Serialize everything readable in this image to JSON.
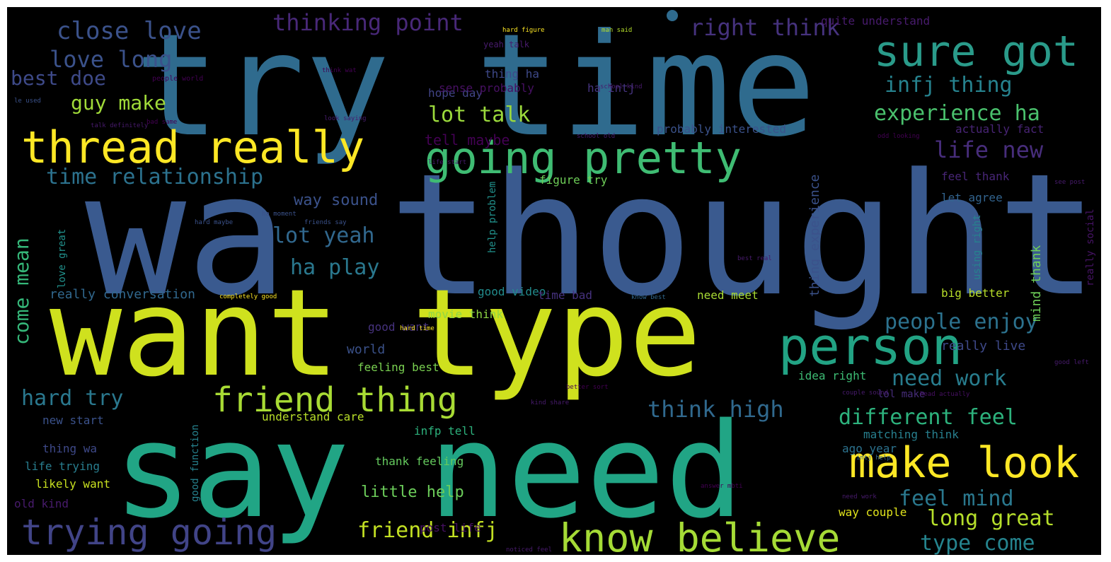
{
  "words": [
    {
      "text": "try time",
      "color": "#2f6b8e"
    },
    {
      "text": "wa thought",
      "color": "#3a5a8f"
    },
    {
      "text": "want type",
      "color": "#cfe11e"
    },
    {
      "text": "say need",
      "color": "#21a585"
    },
    {
      "text": "thread really",
      "color": "#fde725"
    },
    {
      "text": "going pretty",
      "color": "#3fbc73"
    },
    {
      "text": "sure got",
      "color": "#2a9b8a"
    },
    {
      "text": "person",
      "color": "#22a384"
    },
    {
      "text": "make look",
      "color": "#fde725"
    },
    {
      "text": "know believe",
      "color": "#a5db36"
    },
    {
      "text": "trying going",
      "color": "#414487"
    },
    {
      "text": "friend thing",
      "color": "#a8db34"
    },
    {
      "text": "close love",
      "color": "#3b528b"
    },
    {
      "text": "thinking point",
      "color": "#482878"
    },
    {
      "text": "right think",
      "color": "#46327e"
    },
    {
      "text": "love long",
      "color": "#3b528b"
    },
    {
      "text": "best doe",
      "color": "#3e4a89"
    },
    {
      "text": "guy make",
      "color": "#a0da39"
    },
    {
      "text": "lot talk",
      "color": "#9bd93c"
    },
    {
      "text": "time relationship",
      "color": "#2c728e"
    },
    {
      "text": "infj thing",
      "color": "#26828e"
    },
    {
      "text": "experience ha",
      "color": "#4ac16d"
    },
    {
      "text": "life new",
      "color": "#472d7b"
    },
    {
      "text": "tell maybe",
      "color": "#440154"
    },
    {
      "text": "way sound",
      "color": "#3b528b"
    },
    {
      "text": "lot yeah",
      "color": "#31688e"
    },
    {
      "text": "come mean",
      "color": "#35b779"
    },
    {
      "text": "ha play",
      "color": "#2a788e"
    },
    {
      "text": "people enjoy",
      "color": "#2c728e"
    },
    {
      "text": "need work",
      "color": "#287d8e"
    },
    {
      "text": "think high",
      "color": "#30698e"
    },
    {
      "text": "different feel",
      "color": "#2db27d"
    },
    {
      "text": "hard try",
      "color": "#2a788e"
    },
    {
      "text": "feel mind",
      "color": "#2a788e"
    },
    {
      "text": "long great",
      "color": "#b5de2b"
    },
    {
      "text": "type come",
      "color": "#25848e"
    },
    {
      "text": "friend infj",
      "color": "#c2df23"
    },
    {
      "text": "little help",
      "color": "#6ccd5a"
    },
    {
      "text": "really conversation",
      "color": "#31688e"
    },
    {
      "text": "really live",
      "color": "#3e4989"
    },
    {
      "text": "people world",
      "color": "#440154"
    },
    {
      "text": "hope day",
      "color": "#414487"
    },
    {
      "text": "sense probably",
      "color": "#471063"
    },
    {
      "text": "yeah talk",
      "color": "#481b6d"
    },
    {
      "text": "thing ha",
      "color": "#3e4989"
    },
    {
      "text": "ha intj",
      "color": "#463480"
    },
    {
      "text": "probably interested",
      "color": "#3b528b"
    },
    {
      "text": "actually fact",
      "color": "#482475"
    },
    {
      "text": "feel thank",
      "color": "#482677"
    },
    {
      "text": "let agree",
      "color": "#32648e"
    },
    {
      "text": "figure try",
      "color": "#6ece58"
    },
    {
      "text": "quite understand",
      "color": "#481b6d"
    },
    {
      "text": "good video",
      "color": "#228c8d"
    },
    {
      "text": "movie think",
      "color": "#8fd744"
    },
    {
      "text": "time bad",
      "color": "#46327e"
    },
    {
      "text": "need meet",
      "color": "#a8db34"
    },
    {
      "text": "big better",
      "color": "#b8de29"
    },
    {
      "text": "good want",
      "color": "#46327e"
    },
    {
      "text": "feeling best",
      "color": "#7ad151"
    },
    {
      "text": "idea right",
      "color": "#3dbc74"
    },
    {
      "text": "lol make",
      "color": "#472d7b"
    },
    {
      "text": "understand care",
      "color": "#b8de29"
    },
    {
      "text": "infp tell",
      "color": "#2db27d"
    },
    {
      "text": "new start",
      "color": "#3b528b"
    },
    {
      "text": "thing wa",
      "color": "#3e4989"
    },
    {
      "text": "life trying",
      "color": "#287d8e"
    },
    {
      "text": "likely want",
      "color": "#c8e020"
    },
    {
      "text": "old kind",
      "color": "#481b6d"
    },
    {
      "text": "thank feeling",
      "color": "#65cb5e"
    },
    {
      "text": "matching think",
      "color": "#277f8e"
    },
    {
      "text": "ago year",
      "color": "#2c728e"
    },
    {
      "text": "way couple",
      "color": "#e0e31b"
    },
    {
      "text": "post life",
      "color": "#471063"
    },
    {
      "text": "world",
      "color": "#3b528b"
    },
    {
      "text": "love great",
      "color": "#21918c"
    },
    {
      "text": "help problem",
      "color": "#21918c"
    },
    {
      "text": "thing experience",
      "color": "#3b528b"
    },
    {
      "text": "using right",
      "color": "#26828e"
    },
    {
      "text": "mind thank",
      "color": "#6ece58"
    },
    {
      "text": "really social",
      "color": "#481467"
    },
    {
      "text": "good function",
      "color": "#26828e"
    },
    {
      "text": "hard figure",
      "color": "#fde725"
    },
    {
      "text": "man said",
      "color": "#b5de2b"
    },
    {
      "text": "school kind",
      "color": "#481b6d"
    },
    {
      "text": "school old",
      "color": "#481b6d"
    },
    {
      "text": "talk definitely",
      "color": "#481b6d"
    },
    {
      "text": "bad same",
      "color": "#440154"
    },
    {
      "text": "look saying",
      "color": "#481b6d"
    },
    {
      "text": "odd looking",
      "color": "#440154"
    },
    {
      "text": "life start",
      "color": "#481b6d"
    },
    {
      "text": "ha moment",
      "color": "#3b528b"
    },
    {
      "text": "friends say",
      "color": "#3b528b"
    },
    {
      "text": "hard maybe",
      "color": "#3b528b"
    },
    {
      "text": "completely good",
      "color": "#fde725"
    },
    {
      "text": "know best",
      "color": "#31688e"
    },
    {
      "text": "best real",
      "color": "#481b6d"
    },
    {
      "text": "hard time",
      "color": "#fde725"
    },
    {
      "text": "better sort",
      "color": "#440154"
    },
    {
      "text": "kind share",
      "color": "#481b6d"
    },
    {
      "text": "couple sound",
      "color": "#481b6d"
    },
    {
      "text": "head actually",
      "color": "#471063"
    },
    {
      "text": "good left",
      "color": "#481b6d"
    },
    {
      "text": "intj help",
      "color": "#31688e"
    },
    {
      "text": "answer mbti",
      "color": "#440154"
    },
    {
      "text": "need work",
      "color": "#481b6d"
    },
    {
      "text": "noticed feel",
      "color": "#481b6d"
    },
    {
      "text": "see post",
      "color": "#481b6d"
    },
    {
      "text": "think wat",
      "color": "#440154"
    },
    {
      "text": "le used",
      "color": "#3b528b"
    }
  ]
}
